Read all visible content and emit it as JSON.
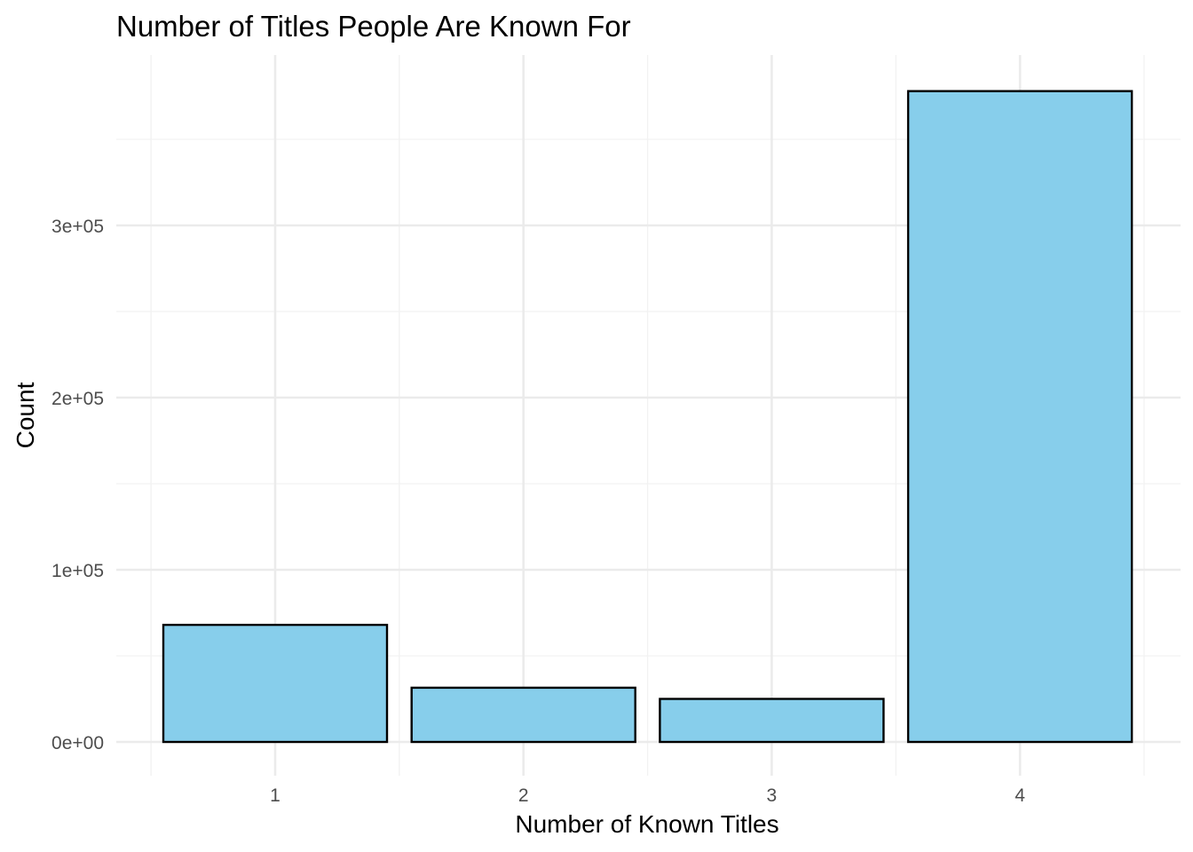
{
  "chart_data": {
    "type": "bar",
    "title": "Number of Titles People Are Known For",
    "xlabel": "Number of Known Titles",
    "ylabel": "Count",
    "categories": [
      "1",
      "2",
      "3",
      "4"
    ],
    "values": [
      68000,
      31500,
      25000,
      378000
    ],
    "ylim": [
      0,
      378000
    ],
    "yticks": [
      0,
      100000,
      200000,
      300000
    ],
    "ytick_labels": [
      "0e+00",
      "1e+05",
      "2e+05",
      "3e+05"
    ],
    "grid": true,
    "legend": "none",
    "bar_fill": "#87CEEB",
    "bar_stroke": "#000000",
    "grid_color": "#EBEBEB"
  }
}
